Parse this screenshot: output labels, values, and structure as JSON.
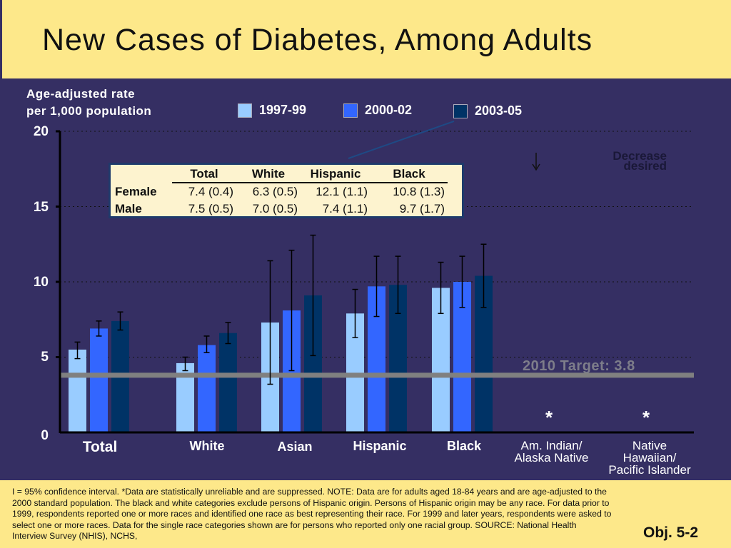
{
  "header": {
    "title": "New Cases of Diabetes, Among Adults"
  },
  "chart_data": {
    "type": "bar",
    "title": "New Cases of Diabetes, Among Adults",
    "ylabel": "Age-adjusted rate per 1,000 population",
    "ylabel_lines": [
      "Age-adjusted rate",
      "per 1,000 population"
    ],
    "xlabel": "",
    "ylim": [
      0,
      20
    ],
    "yticks": [
      0,
      5,
      10,
      15,
      20
    ],
    "ytick_labels": [
      "0",
      "5",
      "10",
      "15",
      "20"
    ],
    "grid": "dotted horizontal",
    "legend_placement": "top",
    "categories": [
      "Total",
      "White",
      "Asian",
      "Hispanic",
      "Black",
      "Am. Indian/ Alaska Native",
      "Native Hawaiian/ Pacific Islander"
    ],
    "category_label_lines": [
      [
        "Total"
      ],
      [
        "White"
      ],
      [
        "Asian"
      ],
      [
        "Hispanic"
      ],
      [
        "Black"
      ],
      [
        "Am. Indian/",
        "Alaska Native"
      ],
      [
        "Native",
        "Hawaiian/",
        "Pacific Islander"
      ]
    ],
    "series": [
      {
        "name": "1997-99",
        "color": "#99ccff",
        "values": [
          5.5,
          4.6,
          7.3,
          7.9,
          9.6,
          null,
          null
        ],
        "ci_low": [
          4.9,
          4.1,
          3.2,
          6.3,
          7.9,
          null,
          null
        ],
        "ci_high": [
          6.0,
          5.0,
          11.4,
          9.5,
          11.3,
          null,
          null
        ]
      },
      {
        "name": "2000-02",
        "color": "#3366ff",
        "values": [
          6.9,
          5.8,
          8.1,
          9.7,
          10.0,
          null,
          null
        ],
        "ci_low": [
          6.4,
          5.3,
          4.1,
          7.7,
          8.3,
          null,
          null
        ],
        "ci_high": [
          7.4,
          6.4,
          12.1,
          11.7,
          11.7,
          null,
          null
        ]
      },
      {
        "name": "2003-05",
        "color": "#003366",
        "values": [
          7.4,
          6.6,
          9.1,
          9.8,
          10.4,
          null,
          null
        ],
        "ci_low": [
          6.8,
          5.9,
          5.1,
          7.9,
          8.3,
          null,
          null
        ],
        "ci_high": [
          8.0,
          7.3,
          13.1,
          11.7,
          12.5,
          null,
          null
        ]
      }
    ],
    "suppressed_marker": "*",
    "target": {
      "value": 3.8,
      "label": "2010 Target: 3.8",
      "color": "#808080"
    },
    "annotation": {
      "arrow": "↓",
      "text_lines": [
        "Decrease",
        "desired"
      ]
    },
    "inset_table": {
      "columns": [
        "Total",
        "White",
        "Hispanic",
        "Black"
      ],
      "rows": [
        {
          "label": "Female",
          "values": [
            "7.4 (0.4)",
            "6.3 (0.5)",
            "12.1 (1.1)",
            "10.8 (1.3)"
          ]
        },
        {
          "label": "Male",
          "values": [
            "7.5 (0.5)",
            "7.0 (0.5)",
            "7.4 (1.1)",
            "9.7 (1.7)"
          ]
        }
      ]
    }
  },
  "footer": {
    "note": "I = 95% confidence interval.   *Data are statistically unreliable and are suppressed.  NOTE: Data are for adults aged 18-84 years and are age-adjusted to the 2000 standard population.  The black and white categories exclude persons of Hispanic origin.  Persons of Hispanic origin may be any race.  For data prior to 1999, respondents reported one or more races and identified one race as best representing their race.  For 1999 and later years, respondents were asked to select one or more races.  Data for the single race categories shown are for persons who reported only one racial group.  SOURCE: National Health Interview Survey (NHIS), NCHS,",
    "objective": "Obj. 5-2"
  }
}
